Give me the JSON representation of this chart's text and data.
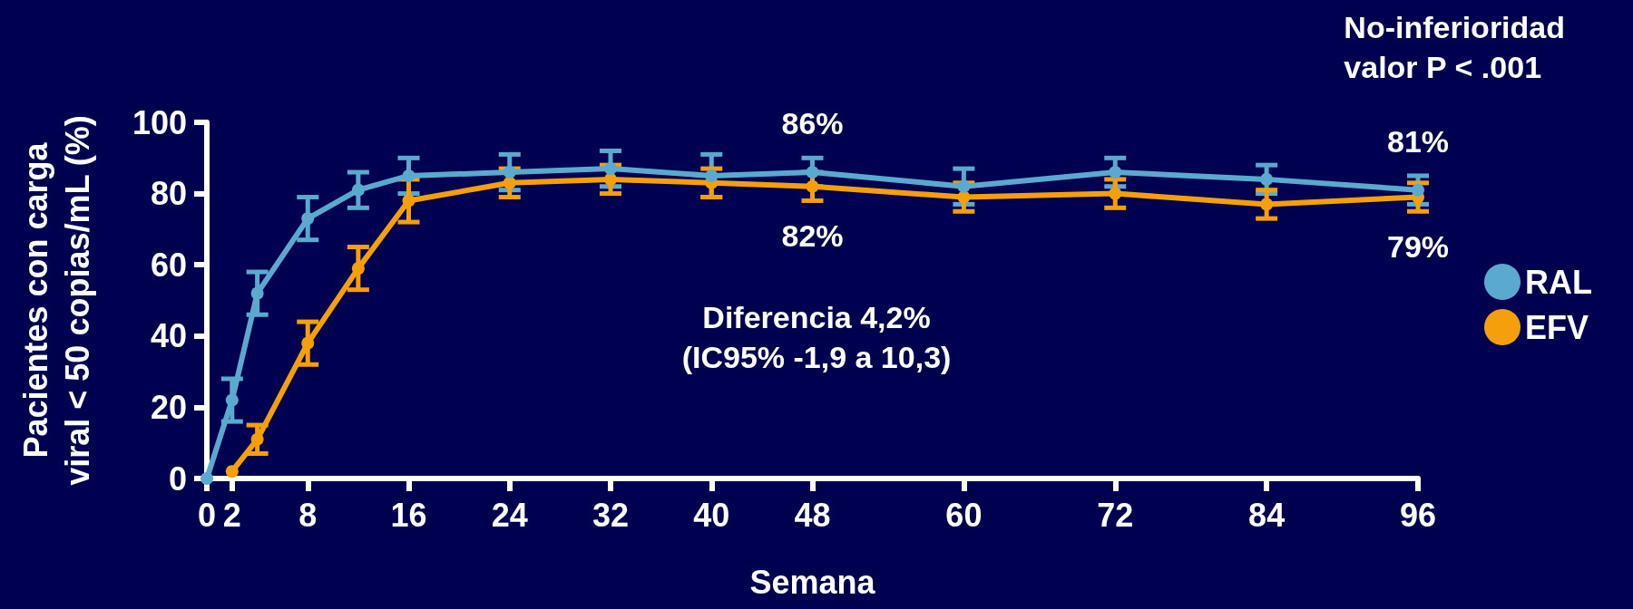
{
  "chart_data": {
    "type": "line",
    "xlabel": "Semana",
    "ylabel": "Pacientes con carga\nviral < 50 copias/mL (%)",
    "x": [
      0,
      2,
      4,
      8,
      12,
      16,
      24,
      32,
      40,
      48,
      60,
      72,
      84,
      96
    ],
    "series": [
      {
        "name": "RAL",
        "color": "#5aaad0",
        "values": [
          0,
          22,
          52,
          73,
          81,
          85,
          86,
          87,
          85,
          86,
          82,
          86,
          84,
          81
        ],
        "errors": [
          null,
          6,
          6,
          6,
          5,
          5,
          5,
          5,
          6,
          4,
          5,
          4,
          4,
          4
        ],
        "value_labels": [
          null,
          null,
          null,
          null,
          null,
          null,
          null,
          null,
          null,
          "86%",
          null,
          null,
          null,
          "81%"
        ]
      },
      {
        "name": "EFV",
        "color": "#f5a00a",
        "x": [
          2,
          4,
          8,
          12,
          16,
          24,
          32,
          40,
          48,
          60,
          72,
          84,
          96
        ],
        "values": [
          2,
          11,
          38,
          59,
          78,
          83,
          84,
          83,
          82,
          79,
          80,
          77,
          79
        ],
        "errors": [
          null,
          4,
          6,
          6,
          6,
          4,
          4,
          4,
          4,
          4,
          4,
          4,
          4
        ],
        "value_labels": [
          null,
          null,
          null,
          null,
          null,
          null,
          null,
          null,
          "82%",
          null,
          null,
          null,
          "79%"
        ]
      }
    ],
    "xlim": [
      0,
      96
    ],
    "xticks": [
      0,
      2,
      8,
      16,
      24,
      32,
      40,
      48,
      60,
      72,
      84,
      96
    ],
    "ylim": [
      0,
      100
    ],
    "yticks": [
      0,
      20,
      40,
      60,
      80,
      100
    ],
    "grid": false,
    "legend": "right",
    "marker": "circle",
    "line_style": "solid",
    "annotations": [
      "Diferencia 4,2%\n(IC95% -1,9 a 10,3)",
      "No-inferioridad\nvalor P < .001"
    ]
  }
}
